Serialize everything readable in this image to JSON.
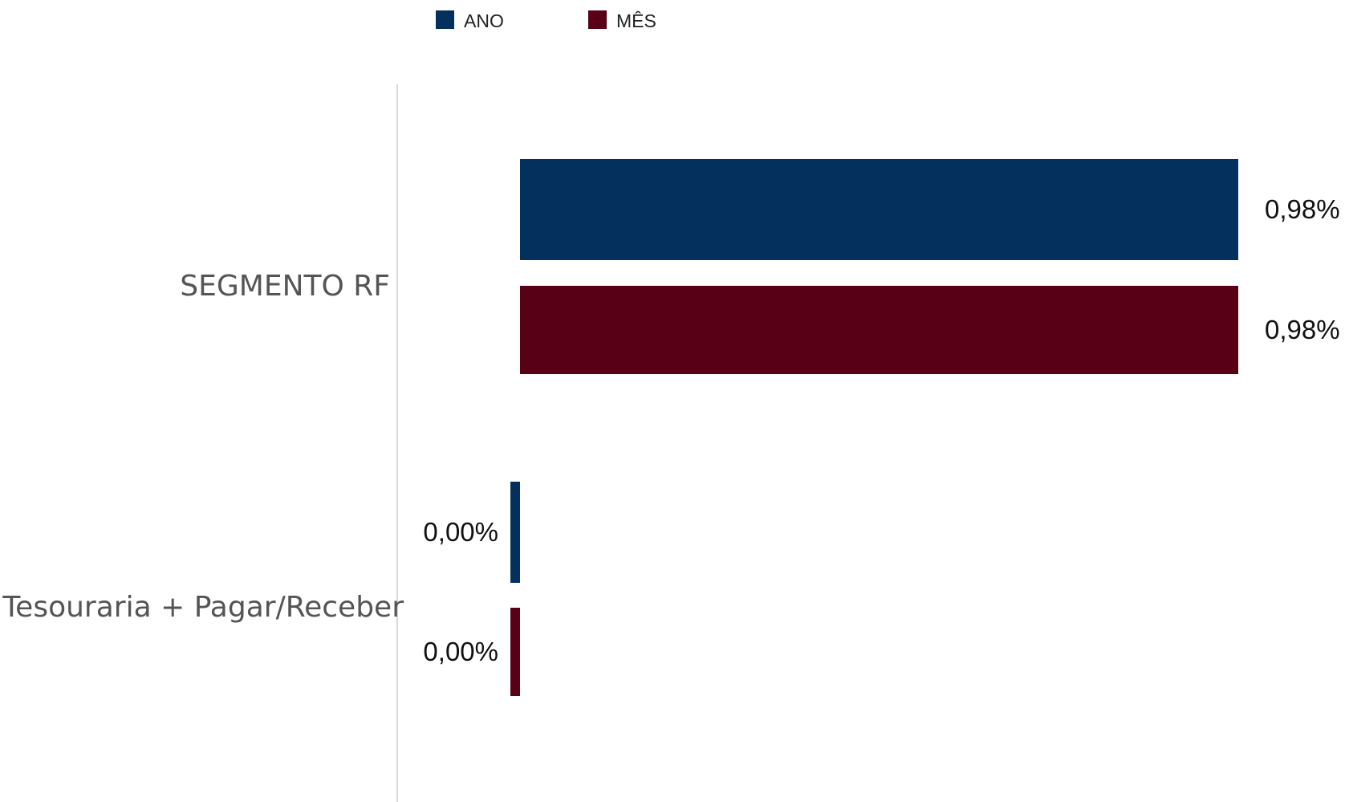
{
  "chart_data": {
    "type": "bar",
    "orientation": "horizontal",
    "categories": [
      "SEGMENTO RF",
      "Tesouraria + Pagar/Receber"
    ],
    "series": [
      {
        "name": "ANO",
        "color": "#03305c",
        "values": [
          0.98,
          0.0
        ],
        "labels": [
          "0,98%",
          "0,00%"
        ]
      },
      {
        "name": "MÊS",
        "color": "#570016",
        "values": [
          0.98,
          0.0
        ],
        "labels": [
          "0,98%",
          "0,00%"
        ]
      }
    ],
    "xlim": [
      0,
      1.0
    ],
    "grid": false,
    "legend_position": "top"
  }
}
